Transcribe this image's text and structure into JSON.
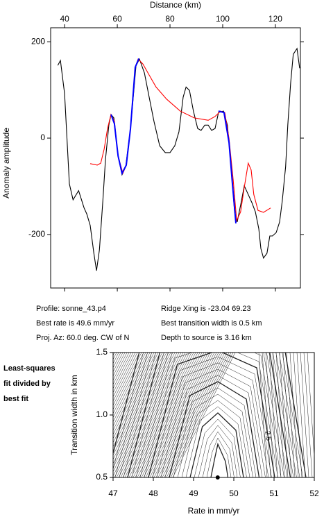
{
  "chart_data": [
    {
      "type": "line",
      "x_label": "Distance (km)",
      "y_label": "Anomaly amplitude",
      "xlim": [
        34.7,
        129.5
      ],
      "xticks": [
        40,
        60,
        80,
        100,
        120
      ],
      "ylim": [
        -311,
        229
      ],
      "yticks": [
        200,
        0,
        -200
      ],
      "series": [
        {
          "color": "#000000",
          "x": [
            37.4,
            38.4,
            40,
            41.8,
            43.2,
            45.3,
            47.4,
            48.4,
            49.7,
            51.1,
            52.1,
            53.2,
            54.5,
            55.5,
            56.8,
            57.6,
            58.7,
            60.3,
            61.8,
            63.2,
            65,
            67.1,
            68.4,
            70.3,
            72.1,
            73.9,
            76.1,
            78.2,
            80,
            81.8,
            83.4,
            85,
            86.1,
            87.4,
            88.9,
            90.5,
            91.8,
            93.2,
            94.5,
            95.8,
            97.1,
            98.4,
            100.3,
            101.8,
            103.4,
            104.5,
            105.5,
            107.1,
            108.2,
            109.7,
            111.1,
            112.4,
            113.7,
            114.5,
            115.5,
            116.8,
            117.9,
            118.9,
            120.3,
            121.6,
            122.6,
            123.9,
            124.7,
            125.8,
            126.8,
            128.2,
            129.2
          ],
          "values": [
            151,
            161,
            92,
            -95,
            -128,
            -109,
            -145,
            -157,
            -181,
            -239,
            -275,
            -232,
            -131,
            -45,
            27,
            49,
            42,
            -37,
            -76,
            -59,
            20,
            150,
            164,
            135,
            85,
            35,
            -16,
            -30,
            -30,
            -16,
            13,
            85,
            106,
            99,
            56,
            20,
            16,
            27,
            27,
            16,
            20,
            53,
            56,
            27,
            -73,
            -153,
            -174,
            -131,
            -99,
            -117,
            -134,
            -153,
            -188,
            -229,
            -249,
            -239,
            -203,
            -203,
            -196,
            -174,
            -131,
            -59,
            27,
            114,
            174,
            186,
            145
          ]
        },
        {
          "color": "#ff0000",
          "x": [
            49.7,
            52.4,
            53.7,
            55,
            56.3,
            57.6,
            58.9,
            60.3,
            62.1,
            63.4,
            65,
            66.8,
            67.9,
            69.7,
            72.1,
            74.7,
            78.7,
            83.9,
            89.2,
            94.5,
            97.1,
            99.2,
            100.8,
            102.4,
            104,
            105.3,
            106.8,
            108.2,
            109.7,
            110.8,
            111.8,
            113.4,
            115.5,
            118.2
          ],
          "values": [
            -53,
            -56,
            -52,
            -23,
            20,
            49,
            35,
            -37,
            -73,
            -56,
            20,
            147,
            164,
            154,
            131,
            106,
            81,
            56,
            42,
            37,
            45,
            56,
            53,
            -1,
            -88,
            -171,
            -153,
            -102,
            -52,
            -66,
            -117,
            -150,
            -154,
            -145
          ]
        },
        {
          "color": "#0000ff",
          "x": [
            57.6,
            58.9,
            60.3,
            61.8,
            63.4,
            65,
            66.8,
            68.2,
            null,
            98.4,
            100.5,
            102.4,
            103.7,
            105
          ],
          "values": [
            49,
            30,
            -37,
            -73,
            -56,
            20,
            147,
            165,
            null,
            56,
            53,
            -9,
            -95,
            -177
          ]
        }
      ]
    },
    {
      "type": "contour",
      "x_label": "Rate in mm/yr",
      "y_label": "Transition width in km",
      "xlim": [
        47,
        52
      ],
      "xticks": [
        47,
        48,
        49,
        50,
        51,
        52
      ],
      "ylim": [
        0.5,
        1.5
      ],
      "yticks": [
        {
          "value": 0.5,
          "label": "0.5"
        },
        {
          "value": 1.0,
          "label": "1.0"
        },
        {
          "value": 1.5,
          "label": "1.5"
        }
      ],
      "contour_labels": [
        2.5
      ],
      "best_fit_point": {
        "x": 49.6,
        "y": 0.5
      },
      "side_note": [
        "Least-squares",
        "fit divided by",
        "best fit"
      ]
    }
  ],
  "info": {
    "left": [
      "Profile: sonne_43.p4",
      "Best rate is 49.6 mm/yr",
      "Proj. Az: 60.0 deg. CW of N"
    ],
    "right": [
      "Ridge Xing is -23.04 69.23",
      "Best transition width is 0.5 km",
      "Depth to source is   3.16 km"
    ]
  }
}
